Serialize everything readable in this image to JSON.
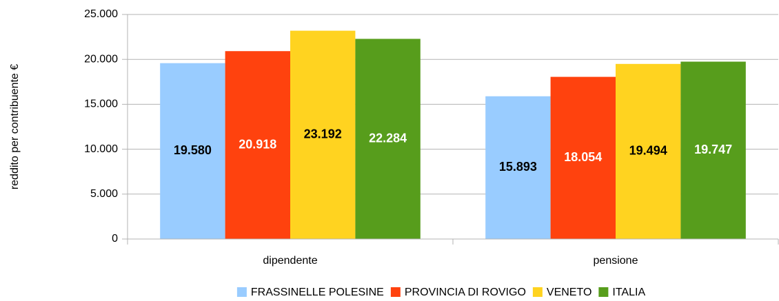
{
  "chart_data": {
    "type": "bar",
    "y_label": "reddito per contribuente €",
    "categories": [
      "dipendente",
      "pensione"
    ],
    "series": [
      {
        "name": "FRASSINELLE POLESINE",
        "color": "#99ccff",
        "values": [
          19580,
          15893
        ],
        "value_labels": [
          "19.580",
          "15.893"
        ]
      },
      {
        "name": "PROVINCIA DI ROVIGO",
        "color": "#ff420e",
        "values": [
          20918,
          18054
        ],
        "value_labels": [
          "20.918",
          "18.054"
        ]
      },
      {
        "name": "VENETO",
        "color": "#ffd320",
        "values": [
          23192,
          19494
        ],
        "value_labels": [
          "23.192",
          "19.494"
        ]
      },
      {
        "name": "ITALIA",
        "color": "#579d1c",
        "values": [
          22284,
          19747
        ],
        "value_labels": [
          "22.284",
          "19.747"
        ]
      }
    ],
    "ylim": [
      0,
      25000
    ],
    "yticks": [
      0,
      {
        "value": 5000,
        "label": "5.000"
      },
      {
        "value": 10000,
        "label": "10.000"
      },
      {
        "value": 15000,
        "label": "15.000"
      },
      {
        "value": 20000,
        "label": "20.000"
      },
      {
        "value": 25000,
        "label": "25.000"
      }
    ],
    "grid": true,
    "legend": "bottom"
  }
}
